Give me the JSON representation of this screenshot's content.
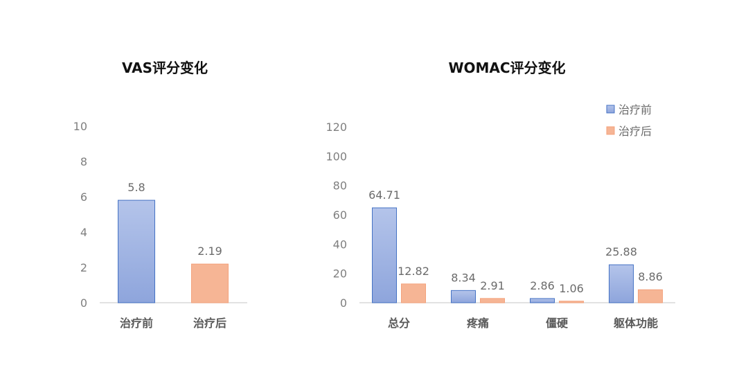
{
  "colors": {
    "before_fill_top": "#b4c4ea",
    "before_fill_bottom": "#8ea5dc",
    "before_stroke": "#4472c4",
    "after_fill": "#f6b595",
    "after_stroke": "#f4a27c",
    "axis": "#d9d9d9"
  },
  "chart_data": [
    {
      "type": "bar",
      "title": "VAS评分变化",
      "categories": [
        "治疗前",
        "治疗后"
      ],
      "values": [
        5.8,
        2.19
      ],
      "value_labels": [
        "5.8",
        "2.19"
      ],
      "ylim": [
        0,
        10
      ],
      "yticks": [
        "0",
        "2",
        "4",
        "6",
        "8",
        "10"
      ],
      "grid": false,
      "legend": false
    },
    {
      "type": "bar",
      "title": "WOMAC评分变化",
      "categories": [
        "总分",
        "疼痛",
        "僵硬",
        "躯体功能"
      ],
      "series": [
        {
          "name": "治疗前",
          "values": [
            64.71,
            8.34,
            2.86,
            25.88
          ],
          "value_labels": [
            "64.71",
            "8.34",
            "2.86",
            "25.88"
          ]
        },
        {
          "name": "治疗后",
          "values": [
            12.82,
            2.91,
            1.06,
            8.86
          ],
          "value_labels": [
            "12.82",
            "2.91",
            "1.06",
            "8.86"
          ]
        }
      ],
      "ylim": [
        0,
        120
      ],
      "yticks": [
        "0",
        "20",
        "40",
        "60",
        "80",
        "100",
        "120"
      ],
      "grid": false,
      "legend": "top-right"
    }
  ]
}
